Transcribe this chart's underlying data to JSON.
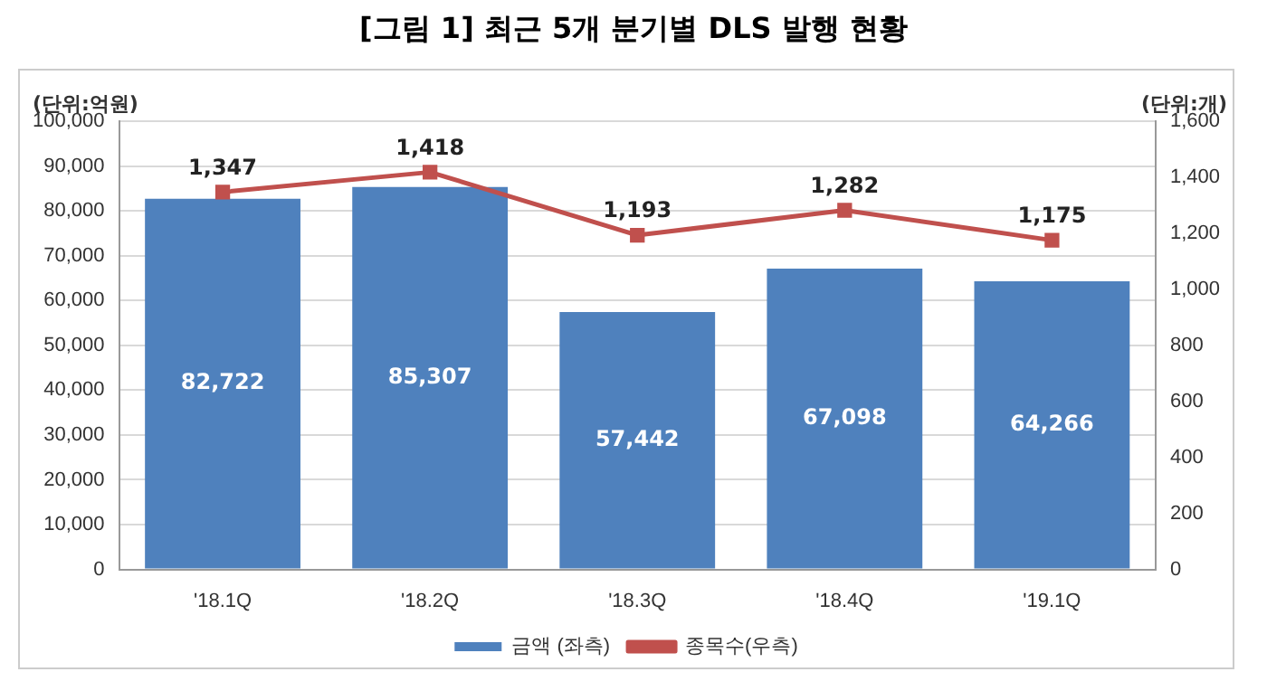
{
  "chart_data": {
    "type": "bar",
    "title": "[그림 1] 최근 5개 분기별 DLS 발행 현황",
    "ylabel": "(단위:억원)",
    "y2label": "(단위:개)",
    "categories": [
      "'18.1Q",
      "'18.2Q",
      "'18.3Q",
      "'18.4Q",
      "'19.1Q"
    ],
    "series": [
      {
        "name": "금액 (좌측)",
        "color": "#4f81bd",
        "values": [
          82722,
          85307,
          57442,
          67098,
          64266
        ],
        "value_labels": [
          "82,722",
          "85,307",
          "57,442",
          "67,098",
          "64,266"
        ]
      },
      {
        "name": "종목수(우측)",
        "type": "line",
        "axis": "y2",
        "color": "#c0504d",
        "values": [
          1347,
          1418,
          1193,
          1282,
          1175
        ],
        "value_labels": [
          "1,347",
          "1,418",
          "1,193",
          "1,282",
          "1,175"
        ]
      }
    ],
    "ylim": [
      0,
      100000
    ],
    "yticks": [
      {
        "value": 0,
        "label": "0"
      },
      {
        "value": 10000,
        "label": "10,000"
      },
      {
        "value": 20000,
        "label": "20,000"
      },
      {
        "value": 30000,
        "label": "30,000"
      },
      {
        "value": 40000,
        "label": "40,000"
      },
      {
        "value": 50000,
        "label": "50,000"
      },
      {
        "value": 60000,
        "label": "60,000"
      },
      {
        "value": 70000,
        "label": "70,000"
      },
      {
        "value": 80000,
        "label": "80,000"
      },
      {
        "value": 90000,
        "label": "90,000"
      },
      {
        "value": 100000,
        "label": "100,000"
      }
    ],
    "y2lim": [
      0,
      1600
    ],
    "y2ticks": [
      {
        "value": 0,
        "label": "0"
      },
      {
        "value": 200,
        "label": "200"
      },
      {
        "value": 400,
        "label": "400"
      },
      {
        "value": 600,
        "label": "600"
      },
      {
        "value": 800,
        "label": "800"
      },
      {
        "value": 1000,
        "label": "1,000"
      },
      {
        "value": 1200,
        "label": "1,200"
      },
      {
        "value": 1400,
        "label": "1,400"
      },
      {
        "value": 1600,
        "label": "1,600"
      }
    ],
    "grid": "y",
    "legend": "bottom",
    "marker": "square",
    "line_style": "solid"
  }
}
